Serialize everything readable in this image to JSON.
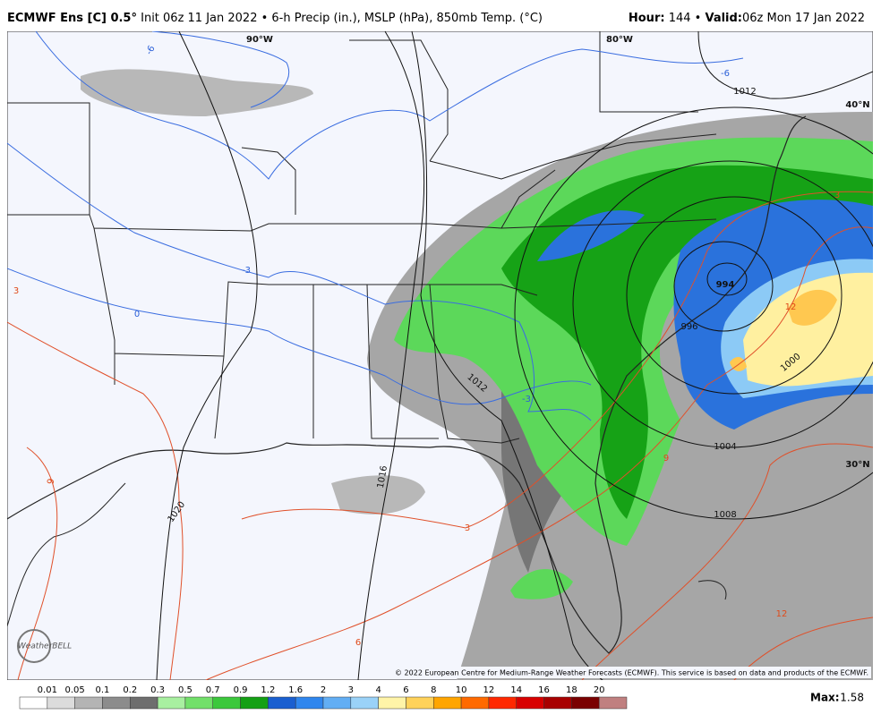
{
  "header": {
    "model": "ECMWF Ens [C] 0.5°",
    "description": "Init 06z 11 Jan 2022 • 6-h Precip (in.), MSLP (hPa), 850mb Temp. (°C)",
    "hour_label": "Hour:",
    "hour": "144 •",
    "valid_label": "Valid:",
    "valid": "06z Mon 17 Jan 2022"
  },
  "map": {
    "longitudes": [
      "90°W",
      "80°W"
    ],
    "latitudes": [
      "40°N",
      "30°N"
    ],
    "isobar_labels": [
      "1012",
      "1012",
      "1016",
      "1020",
      "1004",
      "1008",
      "1000",
      "996",
      "994"
    ],
    "temperature_labels": [
      "-6",
      "-6",
      "-3",
      "0",
      "-3",
      "3",
      "9",
      "3",
      "6",
      "9",
      "12",
      "12",
      "3"
    ],
    "copyright": "© 2022 European Centre for Medium-Range Weather Forecasts (ECMWF). This service is based on data and products of the ECMWF.",
    "logo": "WeatherBELL"
  },
  "colorbar": {
    "labels": [
      "0.01",
      "0.05",
      "0.1",
      "0.2",
      "0.3",
      "0.5",
      "0.7",
      "0.9",
      "1.2",
      "1.6",
      "2",
      "3",
      "4",
      "6",
      "8",
      "10",
      "12",
      "14",
      "16",
      "18",
      "20"
    ],
    "colors": [
      "#ffffff",
      "#dcdcdc",
      "#b4b4b4",
      "#8c8c8c",
      "#6e6e6e",
      "#a8f0a0",
      "#72e06a",
      "#3cc83c",
      "#14a014",
      "#1a5fd0",
      "#2f86ee",
      "#62aef4",
      "#9ad2f8",
      "#fff4a8",
      "#ffd25a",
      "#ffa500",
      "#ff6a00",
      "#ff2800",
      "#d80000",
      "#a80000",
      "#7a0000",
      "#c08080"
    ],
    "max_label": "Max:",
    "max": "1.58"
  }
}
